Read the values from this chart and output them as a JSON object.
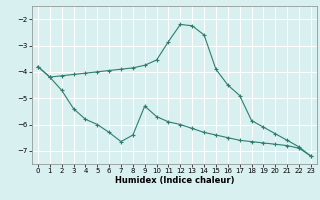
{
  "xlabel": "Humidex (Indice chaleur)",
  "line1_x": [
    0,
    1,
    2,
    3,
    4,
    5,
    6,
    7,
    8,
    9,
    10,
    11,
    12,
    13,
    14,
    15,
    16,
    17,
    18,
    19,
    20,
    21,
    22,
    23
  ],
  "line1_y": [
    -3.8,
    -4.2,
    -4.15,
    -4.1,
    -4.05,
    -4.0,
    -3.95,
    -3.9,
    -3.85,
    -3.75,
    -3.55,
    -2.85,
    -2.2,
    -2.25,
    -2.6,
    -3.9,
    -4.5,
    -4.9,
    -5.85,
    -6.1,
    -6.35,
    -6.6,
    -6.85,
    -7.2
  ],
  "line2_x": [
    0,
    1,
    2,
    3,
    4,
    5,
    6,
    7,
    8,
    9,
    10,
    11,
    12,
    13,
    14,
    15,
    16,
    17,
    18,
    19,
    20,
    21,
    22,
    23
  ],
  "line2_y": [
    -3.8,
    -4.2,
    -4.7,
    -5.4,
    -5.8,
    -6.0,
    -6.3,
    -6.65,
    -6.4,
    -5.3,
    -5.7,
    -5.9,
    -6.0,
    -6.15,
    -6.3,
    -6.4,
    -6.5,
    -6.6,
    -6.65,
    -6.7,
    -6.75,
    -6.8,
    -6.9,
    -7.2
  ],
  "line_color": "#2e7d6e",
  "bg_color": "#d8f0f0",
  "grid_color": "#ffffff",
  "ylim": [
    -7.5,
    -1.5
  ],
  "xlim": [
    -0.5,
    23.5
  ],
  "yticks": [
    -7,
    -6,
    -5,
    -4,
    -3,
    -2
  ],
  "xticks": [
    0,
    1,
    2,
    3,
    4,
    5,
    6,
    7,
    8,
    9,
    10,
    11,
    12,
    13,
    14,
    15,
    16,
    17,
    18,
    19,
    20,
    21,
    22,
    23
  ],
  "tick_fontsize": 5.0,
  "xlabel_fontsize": 6.0
}
